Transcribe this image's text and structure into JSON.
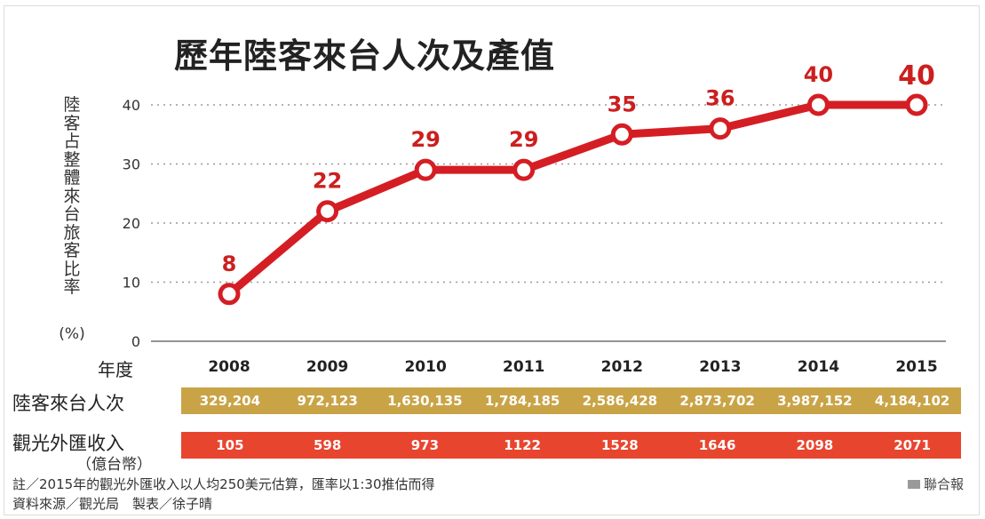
{
  "chart_data": {
    "type": "line",
    "title": "歷年陸客來台人次及產值",
    "ylabel": "陸客占整體來台旅客比率",
    "ylabel_unit": "(%)",
    "xlabel": "年度",
    "categories": [
      "2008",
      "2009",
      "2010",
      "2011",
      "2012",
      "2013",
      "2014",
      "2015"
    ],
    "values": [
      8,
      22,
      29,
      29,
      35,
      36,
      40,
      40
    ],
    "ylim": [
      0,
      40
    ],
    "yticks": [
      0,
      10,
      20,
      30,
      40
    ],
    "grid": true,
    "line_color": "#d41e24"
  },
  "table": {
    "visitors_label": "陸客來台人次",
    "visitors": [
      "329,204",
      "972,123",
      "1,630,135",
      "1,784,185",
      "2,586,428",
      "2,873,702",
      "3,987,152",
      "4,184,102"
    ],
    "visitors_color": "#c9a447",
    "revenue_label": "觀光外匯收入",
    "revenue_unit": "（億台幣）",
    "revenue": [
      "105",
      "598",
      "973",
      "1122",
      "1528",
      "1646",
      "2098",
      "2071"
    ],
    "revenue_color": "#e8452f"
  },
  "footer": {
    "note": "註／2015年的觀光外匯收入以人均250美元估算，匯率以1:30推估而得",
    "credit": "資料來源／觀光局　製表／徐子晴",
    "source": "聯合報"
  }
}
